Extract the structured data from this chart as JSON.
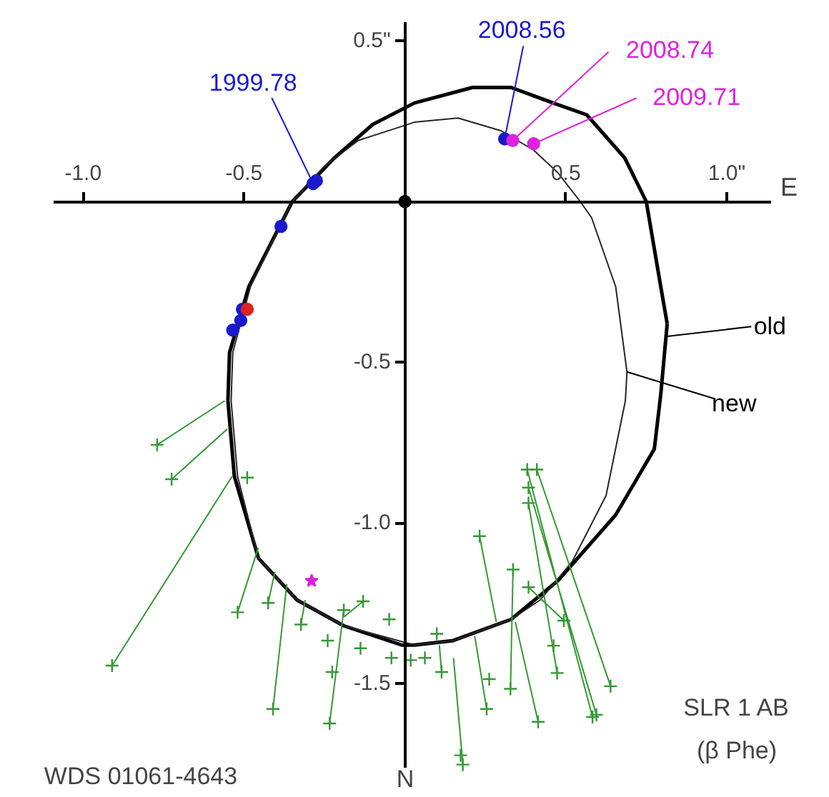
{
  "chart_data": {
    "type": "scatter",
    "xlabel": "E",
    "xlim": [
      -1.09,
      1.14
    ],
    "ylim": [
      -1.76,
      0.56
    ],
    "xticks": [
      {
        "value": -1.0,
        "label": "-1.0"
      },
      {
        "value": -0.5,
        "label": "-0.5"
      },
      {
        "value": 0.5,
        "label": "0.5"
      },
      {
        "value": 1.0,
        "label": "1.0\""
      }
    ],
    "yticks": [
      {
        "value": 0.5,
        "label": "0.5\""
      },
      {
        "value": -0.5,
        "label": "-0.5"
      },
      {
        "value": -1.0,
        "label": "-1.0"
      },
      {
        "value": -1.5,
        "label": "-1.5"
      }
    ],
    "grid": false,
    "series": [
      {
        "type": "line",
        "color": "#000000",
        "marker": "none",
        "x": [
          -0.55,
          -0.545,
          -0.485,
          -0.35,
          -0.22,
          -0.1,
          0.03,
          0.21,
          0.33,
          0.46,
          0.565,
          0.683,
          0.75,
          0.795,
          0.815,
          null,
          -0.55,
          -0.53,
          -0.455,
          -0.335,
          -0.19,
          -0.01,
          0.03,
          0.15,
          0.33,
          0.475,
          0.655,
          0.775,
          0.795,
          0.815
        ],
        "values": [
          -0.62,
          -0.47,
          -0.265,
          0,
          0.135,
          0.24,
          0.307,
          0.355,
          0.355,
          0.307,
          0.27,
          0.136,
          0,
          -0.265,
          -0.38,
          null,
          -0.62,
          -0.855,
          -1.11,
          -1.24,
          -1.32,
          -1.38,
          -1.38,
          -1.366,
          -1.3,
          -1.18,
          -0.975,
          -0.77,
          -0.6,
          -0.38
        ]
      },
      {
        "type": "line",
        "color": "#262626",
        "marker": "none",
        "x": [
          -0.54,
          -0.535,
          -0.48,
          -0.35,
          -0.25,
          -0.145,
          0.03,
          0.165,
          0.3,
          0.4,
          0.475,
          0.545,
          0.58,
          0.655,
          0.69,
          null,
          -0.54,
          -0.52,
          -0.455,
          -0.335,
          -0.19,
          0.03,
          0.15,
          0.33,
          0.42,
          0.52,
          0.625,
          0.685,
          0.69
        ],
        "values": [
          -0.62,
          -0.47,
          -0.265,
          0,
          0.11,
          0.19,
          0.247,
          0.26,
          0.22,
          0.16,
          0.09,
          0,
          -0.05,
          -0.265,
          -0.53,
          null,
          -0.62,
          -0.855,
          -1.11,
          -1.24,
          -1.32,
          -1.38,
          -1.366,
          -1.3,
          -1.24,
          -1.12,
          -0.915,
          -0.62,
          -0.53
        ]
      },
      {
        "type": "line",
        "color": "#339933",
        "marker": "none",
        "x": [
          -0.77,
          -0.56,
          null,
          -0.725,
          -0.552,
          null,
          -0.91,
          -0.537,
          null,
          -0.52,
          -0.456,
          null,
          -0.425,
          -0.404,
          null,
          -0.41,
          -0.367,
          null,
          -0.323,
          -0.31,
          null,
          -0.234,
          -0.19,
          null,
          -0.13,
          -0.19,
          null,
          0.114,
          0.107,
          null,
          0.18,
          0.151,
          null,
          0.254,
          0.217,
          null,
          0.232,
          0.284,
          null,
          0.328,
          0.336,
          null,
          0.414,
          0.343,
          null,
          0.384,
          0.494,
          null,
          0.38,
          0.583,
          null,
          0.41,
          0.639,
          null,
          0.384,
          0.595,
          null,
          0.384,
          0.473
        ],
        "values": [
          -0.757,
          -0.62,
          null,
          -0.864,
          -0.708,
          null,
          -1.444,
          -0.855,
          null,
          -1.278,
          -1.078,
          null,
          -1.249,
          -1.152,
          null,
          -1.579,
          -1.19,
          null,
          -1.316,
          -1.24,
          null,
          -1.624,
          -1.27,
          null,
          -1.244,
          -1.293,
          null,
          -1.464,
          -1.38,
          null,
          -1.752,
          -1.42,
          null,
          -1.579,
          -1.352,
          null,
          -1.041,
          -1.308,
          null,
          -1.516,
          -1.145,
          null,
          -1.619,
          -1.308,
          null,
          -1.2,
          -1.304,
          null,
          -0.834,
          -1.604,
          null,
          -0.834,
          -1.508,
          null,
          -0.89,
          -1.597,
          null,
          -0.938,
          -1.467
        ]
      },
      {
        "type": "scatter",
        "color": "#339933",
        "marker": "cross",
        "x": [
          -0.77,
          -0.725,
          -0.91,
          -0.49,
          -0.52,
          -0.425,
          -0.41,
          -0.323,
          -0.234,
          -0.226,
          -0.24,
          -0.13,
          -0.19,
          -0.138,
          -0.049,
          -0.042,
          0.018,
          0.062,
          0.099,
          0.114,
          0.18,
          0.173,
          0.254,
          0.262,
          0.232,
          0.328,
          0.336,
          0.414,
          0.384,
          0.494,
          0.462,
          0.473,
          0.639,
          0.583,
          0.595,
          0.38,
          0.41,
          0.384,
          0.384
        ],
        "values": [
          -0.757,
          -0.864,
          -1.444,
          -0.859,
          -1.278,
          -1.249,
          -1.579,
          -1.316,
          -1.624,
          -1.464,
          -1.366,
          -1.244,
          -1.271,
          -1.39,
          -1.3,
          -1.42,
          -1.427,
          -1.42,
          -1.345,
          -1.464,
          -1.752,
          -1.723,
          -1.579,
          -1.486,
          -1.041,
          -1.516,
          -1.145,
          -1.619,
          -1.2,
          -1.304,
          -1.382,
          -1.467,
          -1.508,
          -1.604,
          -1.597,
          -0.834,
          -0.834,
          -0.89,
          -0.938
        ]
      },
      {
        "type": "scatter",
        "color": "#1a1acc",
        "marker": "circle",
        "x": [
          -0.285,
          -0.275,
          -0.385,
          -0.505,
          -0.51,
          -0.535,
          0.31
        ],
        "values": [
          0.056,
          0.065,
          -0.077,
          -0.335,
          -0.37,
          -0.4,
          0.195
        ]
      },
      {
        "type": "scatter",
        "color": "#dd2222",
        "marker": "circle",
        "x": [
          -0.49
        ],
        "values": [
          -0.335
        ]
      },
      {
        "type": "scatter",
        "color": "#dd22dd",
        "marker": "circle",
        "x": [
          0.335,
          0.4
        ],
        "values": [
          0.19,
          0.18
        ]
      },
      {
        "type": "scatter",
        "color": "#dd22dd",
        "marker": "star",
        "x": [
          -0.29
        ],
        "values": [
          -1.18
        ]
      },
      {
        "type": "scatter",
        "color": "#000000",
        "marker": "circle",
        "x": [
          0
        ],
        "values": [
          0
        ]
      }
    ],
    "annotations": [
      {
        "text": "1999.78",
        "x": -0.285,
        "y": 0.056
      },
      {
        "text": "2008.56",
        "x": 0.31,
        "y": 0.195
      },
      {
        "text": "2008.74",
        "x": 0.335,
        "y": 0.19
      },
      {
        "text": "2009.71",
        "x": 0.4,
        "y": 0.18
      },
      {
        "text": "old",
        "x": 0.81,
        "y": -0.42
      },
      {
        "text": "new",
        "x": 0.69,
        "y": -0.53
      },
      "WDS 01061-4643",
      "SLR 1 AB",
      "(β Phe)",
      "N"
    ]
  }
}
